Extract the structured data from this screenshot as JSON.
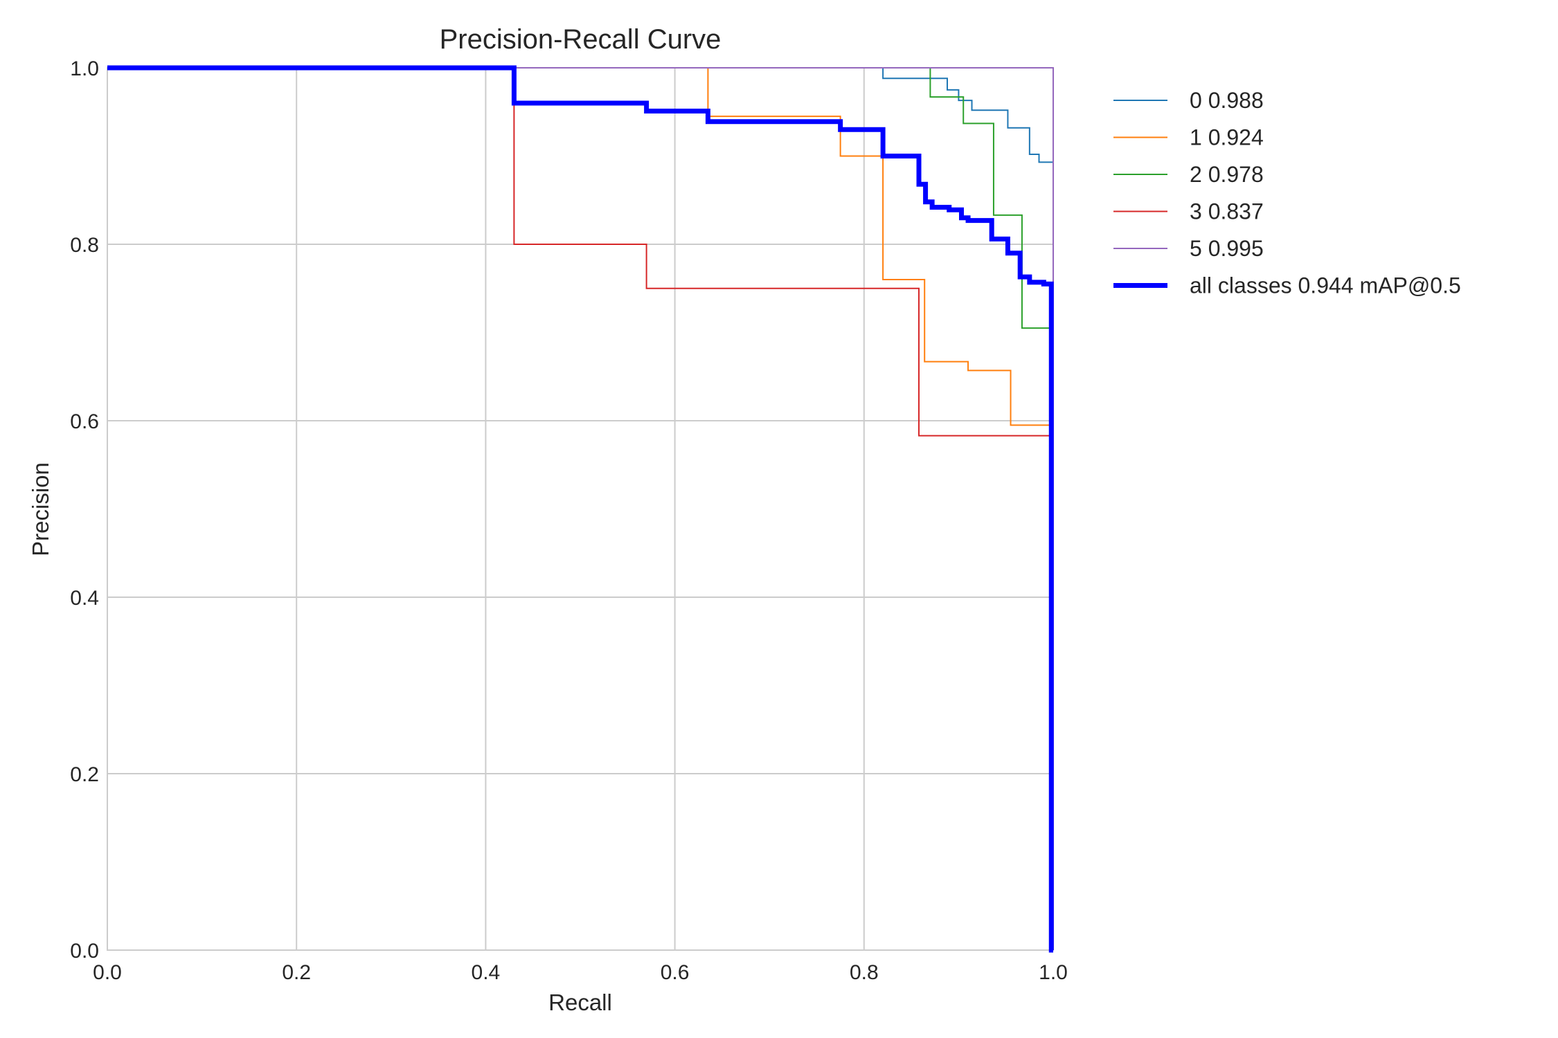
{
  "chart_data": {
    "type": "line",
    "title": "Precision-Recall Curve",
    "xlabel": "Recall",
    "ylabel": "Precision",
    "xlim": [
      0,
      1
    ],
    "ylim": [
      0,
      1
    ],
    "xticks": [
      "0.0",
      "0.2",
      "0.4",
      "0.6",
      "0.8",
      "1.0"
    ],
    "yticks": [
      "0.0",
      "0.2",
      "0.4",
      "0.6",
      "0.8",
      "1.0"
    ],
    "grid": true,
    "legend_position": "outside-top-right",
    "series": [
      {
        "name": "0 0.988",
        "color": "#1f77b4",
        "width": 2,
        "points": [
          [
            0,
            1
          ],
          [
            0.82,
            1
          ],
          [
            0.82,
            0.988
          ],
          [
            0.888,
            0.988
          ],
          [
            0.888,
            0.975
          ],
          [
            0.9,
            0.975
          ],
          [
            0.9,
            0.963
          ],
          [
            0.914,
            0.963
          ],
          [
            0.914,
            0.952
          ],
          [
            0.952,
            0.952
          ],
          [
            0.952,
            0.932
          ],
          [
            0.975,
            0.932
          ],
          [
            0.975,
            0.902
          ],
          [
            0.985,
            0.902
          ],
          [
            0.985,
            0.893
          ],
          [
            1,
            0.893
          ]
        ]
      },
      {
        "name": "1 0.924",
        "color": "#ff7f0e",
        "width": 2,
        "points": [
          [
            0,
            1
          ],
          [
            0.635,
            1
          ],
          [
            0.635,
            0.945
          ],
          [
            0.775,
            0.945
          ],
          [
            0.775,
            0.9
          ],
          [
            0.82,
            0.9
          ],
          [
            0.82,
            0.76
          ],
          [
            0.864,
            0.76
          ],
          [
            0.864,
            0.667
          ],
          [
            0.91,
            0.667
          ],
          [
            0.91,
            0.657
          ],
          [
            0.955,
            0.657
          ],
          [
            0.955,
            0.595
          ],
          [
            1,
            0.595
          ]
        ]
      },
      {
        "name": "2 0.978",
        "color": "#2ca02c",
        "width": 2,
        "points": [
          [
            0,
            1
          ],
          [
            0.87,
            1
          ],
          [
            0.87,
            0.967
          ],
          [
            0.905,
            0.967
          ],
          [
            0.905,
            0.937
          ],
          [
            0.937,
            0.937
          ],
          [
            0.937,
            0.833
          ],
          [
            0.967,
            0.833
          ],
          [
            0.967,
            0.705
          ],
          [
            1,
            0.705
          ]
        ]
      },
      {
        "name": "3 0.837",
        "color": "#d62728",
        "width": 2,
        "points": [
          [
            0,
            1
          ],
          [
            0.43,
            1
          ],
          [
            0.43,
            0.8
          ],
          [
            0.57,
            0.8
          ],
          [
            0.57,
            0.75
          ],
          [
            0.858,
            0.75
          ],
          [
            0.858,
            0.583
          ],
          [
            1,
            0.583
          ]
        ]
      },
      {
        "name": "5 0.995",
        "color": "#9467bd",
        "width": 2,
        "points": [
          [
            0,
            1
          ],
          [
            1,
            1
          ],
          [
            1,
            0
          ]
        ]
      },
      {
        "name": "all classes 0.944 mAP@0.5",
        "color": "#0000ff",
        "width": 7,
        "points": [
          [
            0,
            1
          ],
          [
            0.43,
            1
          ],
          [
            0.43,
            0.96
          ],
          [
            0.57,
            0.96
          ],
          [
            0.57,
            0.951
          ],
          [
            0.635,
            0.951
          ],
          [
            0.635,
            0.939
          ],
          [
            0.775,
            0.939
          ],
          [
            0.775,
            0.93
          ],
          [
            0.82,
            0.93
          ],
          [
            0.82,
            0.9
          ],
          [
            0.858,
            0.9
          ],
          [
            0.858,
            0.868
          ],
          [
            0.865,
            0.868
          ],
          [
            0.865,
            0.848
          ],
          [
            0.872,
            0.848
          ],
          [
            0.872,
            0.842
          ],
          [
            0.89,
            0.842
          ],
          [
            0.89,
            0.839
          ],
          [
            0.903,
            0.839
          ],
          [
            0.903,
            0.83
          ],
          [
            0.91,
            0.83
          ],
          [
            0.91,
            0.827
          ],
          [
            0.935,
            0.827
          ],
          [
            0.935,
            0.806
          ],
          [
            0.952,
            0.806
          ],
          [
            0.952,
            0.79
          ],
          [
            0.965,
            0.79
          ],
          [
            0.965,
            0.763
          ],
          [
            0.975,
            0.763
          ],
          [
            0.975,
            0.757
          ],
          [
            0.99,
            0.757
          ],
          [
            0.99,
            0.755
          ],
          [
            0.998,
            0.755
          ],
          [
            0.998,
            0
          ],
          [
            1,
            0
          ]
        ]
      }
    ]
  }
}
